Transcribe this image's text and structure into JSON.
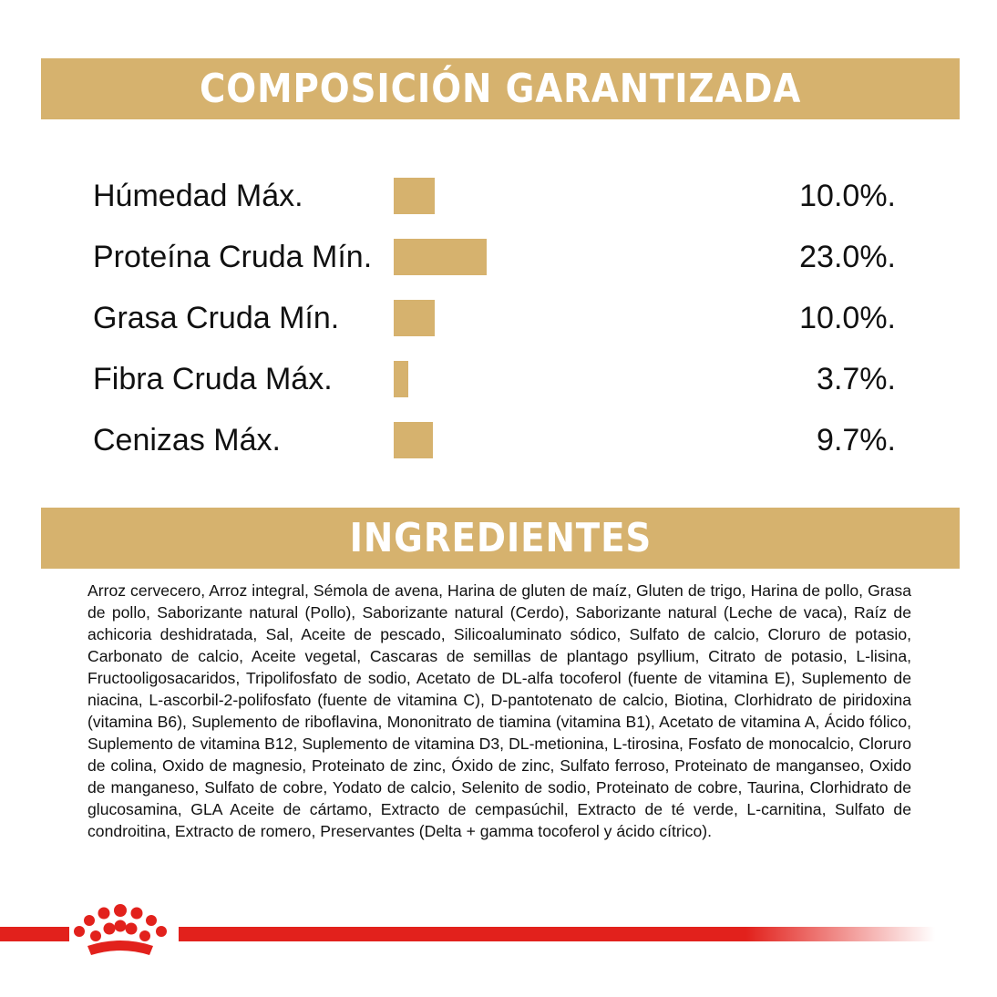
{
  "header": {
    "title": "COMPOSICIÓN GARANTIZADA"
  },
  "chart_data": {
    "type": "bar",
    "orientation": "horizontal",
    "color": "#d6b26e",
    "categories": [
      "Húmedad Máx.",
      "Proteína Cruda Mín.",
      "Grasa Cruda Mín.",
      "Fibra Cruda Máx.",
      "Cenizas Máx."
    ],
    "values": [
      10.0,
      23.0,
      10.0,
      3.7,
      9.7
    ],
    "value_labels": [
      "10.0%.",
      "23.0%.",
      "10.0%.",
      "3.7%.",
      "9.7%."
    ]
  },
  "ingredients": {
    "title": "INGREDIENTES",
    "text": "Arroz cervecero, Arroz integral, Sémola de avena, Harina de gluten de maíz, Gluten de trigo, Harina de pollo, Grasa de pollo, Saborizante natural (Pollo), Saborizante natural (Cerdo), Saborizante natural (Leche de vaca), Raíz de achicoria deshidratada, Sal, Aceite de pescado, Silicoaluminato sódico, Sulfato de calcio, Cloruro de potasio, Carbonato de calcio, Aceite vegetal, Cascaras de semillas de plantago psyllium, Citrato de potasio, L-lisina, Fructooligosacaridos, Tripolifosfato de sodio, Acetato de DL-alfa tocoferol (fuente de vitamina E), Suplemento de niacina, L-ascorbil-2-polifosfato (fuente de vitamina C), D-pantotenato de calcio, Biotina, Clorhidrato de piridoxina (vitamina B6), Suplemento de riboflavina, Mononitrato de tiamina (vitamina B1), Acetato de vitamina A, Ácido fólico, Suplemento de vitamina B12, Suplemento de vitamina D3, DL-metionina, L-tirosina, Fosfato de monocalcio, Cloruro de colina, Oxido de magnesio, Proteinato de zinc, Óxido de zinc, Sulfato ferroso, Proteinato de manganseo, Oxido de manganeso, Sulfato de cobre, Yodato de calcio, Selenito de sodio, Proteinato de cobre, Taurina, Clorhidrato de glucosamina, GLA Aceite de cártamo, Extracto de cempasúchil, Extracto de té verde, L-carnitina, Sulfato de condroitina, Extracto de romero, Preservantes (Delta + gamma tocoferol y ácido cítrico)."
  }
}
